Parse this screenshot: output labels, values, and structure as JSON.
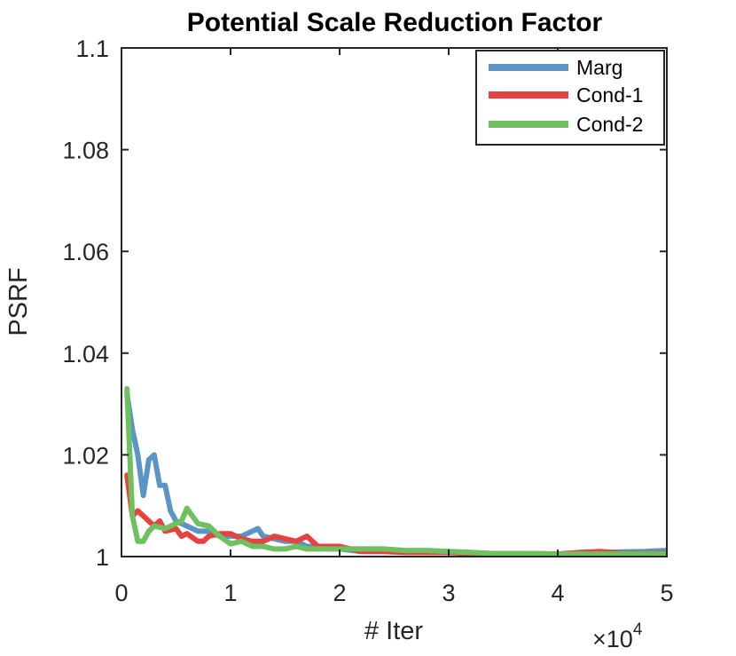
{
  "chart_data": {
    "type": "line",
    "title": "Potential Scale Reduction Factor",
    "xlabel": "# Iter",
    "ylabel": "PSRF",
    "x_exponent_base": "×10",
    "x_exponent_power": "4",
    "xlim": [
      0,
      5
    ],
    "ylim": [
      1,
      1.1
    ],
    "xticks": [
      0,
      1,
      2,
      3,
      4,
      5
    ],
    "xtick_labels": [
      "0",
      "1",
      "2",
      "3",
      "4",
      "5"
    ],
    "yticks": [
      1,
      1.02,
      1.04,
      1.06,
      1.08,
      1.1
    ],
    "ytick_labels": [
      "1",
      "1.02",
      "1.04",
      "1.06",
      "1.08",
      "1.1"
    ],
    "legend_position": "top-right",
    "grid": false,
    "series": [
      {
        "name": "Marg",
        "color": "#5b95c5",
        "x": [
          0.05,
          0.1,
          0.15,
          0.2,
          0.25,
          0.3,
          0.35,
          0.4,
          0.45,
          0.5,
          0.6,
          0.7,
          0.8,
          0.9,
          1.0,
          1.1,
          1.2,
          1.25,
          1.3,
          1.4,
          1.5,
          1.6,
          1.7,
          1.8,
          1.9,
          2.0,
          2.2,
          2.4,
          2.6,
          2.8,
          3.0,
          3.2,
          3.4,
          3.6,
          3.8,
          4.0,
          4.2,
          4.4,
          4.6,
          4.8,
          5.0
        ],
        "values": [
          1.032,
          1.025,
          1.02,
          1.012,
          1.019,
          1.02,
          1.014,
          1.014,
          1.009,
          1.007,
          1.006,
          1.005,
          1.005,
          1.004,
          1.004,
          1.004,
          1.005,
          1.0055,
          1.004,
          1.0035,
          1.003,
          1.003,
          1.002,
          1.002,
          1.0015,
          1.0015,
          1.001,
          1.001,
          1.001,
          1.001,
          1.001,
          1.0008,
          1.0006,
          1.0006,
          1.0005,
          1.0005,
          1.0006,
          1.0008,
          1.0009,
          1.001,
          1.0012
        ]
      },
      {
        "name": "Cond-1",
        "color": "#e6423f",
        "x": [
          0.05,
          0.1,
          0.15,
          0.2,
          0.25,
          0.3,
          0.35,
          0.4,
          0.5,
          0.55,
          0.6,
          0.7,
          0.75,
          0.8,
          0.9,
          1.0,
          1.1,
          1.2,
          1.3,
          1.4,
          1.5,
          1.6,
          1.7,
          1.8,
          1.9,
          2.0,
          2.2,
          2.4,
          2.6,
          2.8,
          3.0,
          3.2,
          3.4,
          3.6,
          3.8,
          4.0,
          4.2,
          4.4,
          4.6,
          4.8,
          5.0
        ],
        "values": [
          1.016,
          1.008,
          1.009,
          1.008,
          1.007,
          1.006,
          1.007,
          1.005,
          1.0055,
          1.004,
          1.0045,
          1.003,
          1.003,
          1.004,
          1.0045,
          1.0045,
          1.0035,
          1.003,
          1.003,
          1.004,
          1.0035,
          1.003,
          1.004,
          1.002,
          1.002,
          1.002,
          1.001,
          1.001,
          1.0008,
          1.0008,
          1.0008,
          1.0006,
          1.0006,
          1.0006,
          1.0006,
          1.0005,
          1.0008,
          1.001,
          1.0006,
          1.0006,
          1.0006
        ]
      },
      {
        "name": "Cond-2",
        "color": "#6fc15f",
        "x": [
          0.05,
          0.1,
          0.15,
          0.2,
          0.25,
          0.3,
          0.4,
          0.5,
          0.55,
          0.6,
          0.65,
          0.7,
          0.8,
          0.9,
          1.0,
          1.1,
          1.2,
          1.3,
          1.4,
          1.5,
          1.6,
          1.7,
          1.8,
          1.9,
          2.0,
          2.2,
          2.4,
          2.6,
          2.8,
          3.0,
          3.2,
          3.4,
          3.6,
          3.8,
          4.0,
          4.2,
          4.4,
          4.6,
          4.8,
          5.0
        ],
        "values": [
          1.033,
          1.008,
          1.003,
          1.003,
          1.005,
          1.006,
          1.0055,
          1.0065,
          1.007,
          1.0095,
          1.008,
          1.0065,
          1.006,
          1.004,
          1.0025,
          1.003,
          1.002,
          1.002,
          1.0015,
          1.0015,
          1.002,
          1.0015,
          1.0015,
          1.0015,
          1.0015,
          1.0015,
          1.0015,
          1.0012,
          1.0012,
          1.001,
          1.0008,
          1.0006,
          1.0006,
          1.0006,
          1.0005,
          1.0005,
          1.0005,
          1.0005,
          1.0005,
          1.0005
        ]
      }
    ]
  }
}
